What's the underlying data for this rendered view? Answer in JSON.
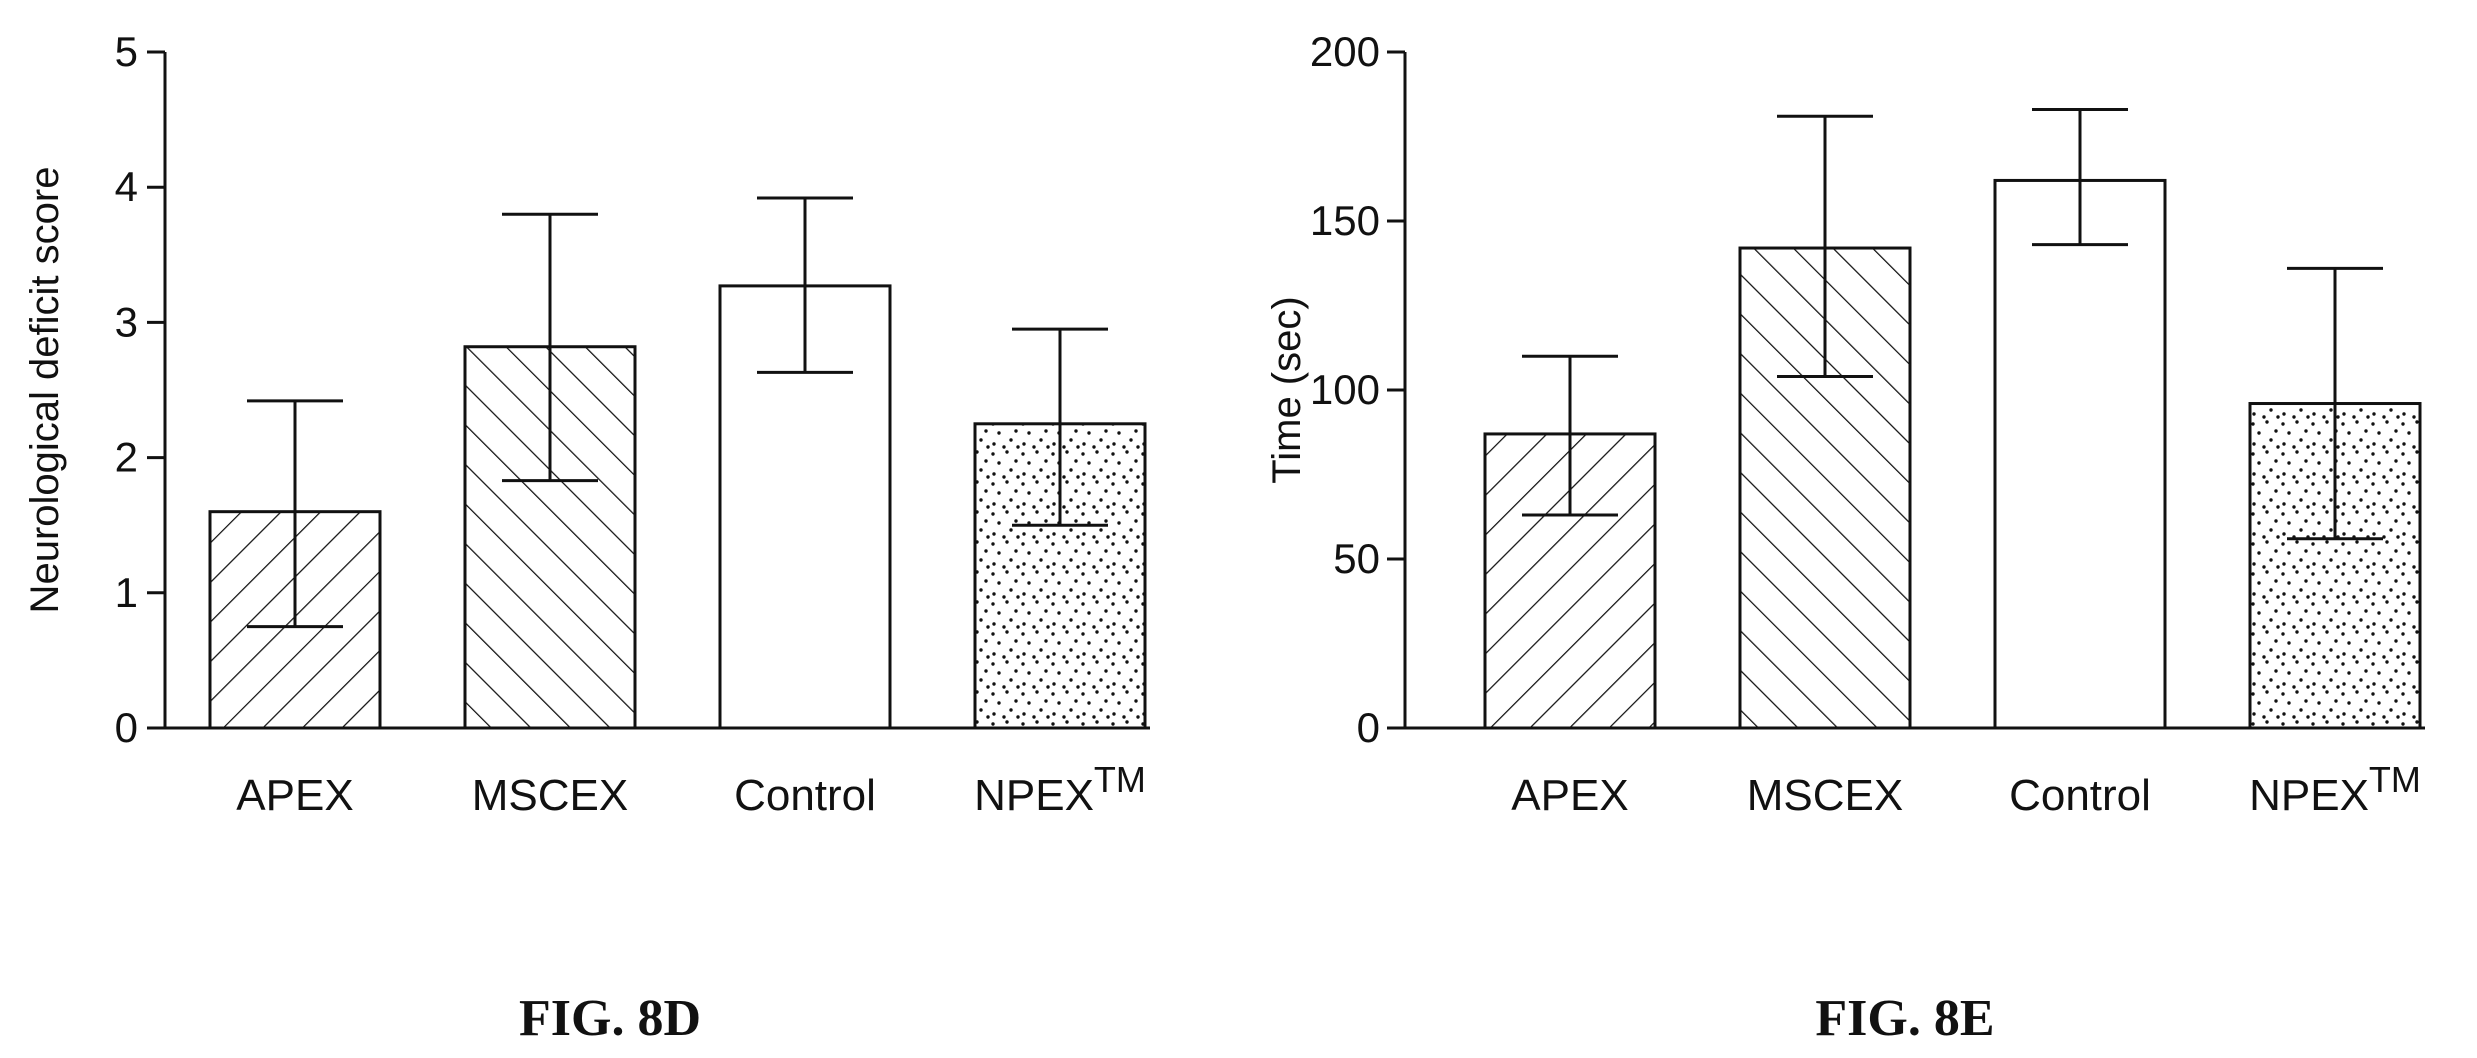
{
  "chart_data": [
    {
      "type": "bar",
      "title": "",
      "caption": "FIG. 8D",
      "ylabel": "Neurological deficit score",
      "xlabel": "",
      "ylim": [
        0,
        5
      ],
      "yticks": [
        0,
        1,
        2,
        3,
        4,
        5
      ],
      "categories": [
        "APEX",
        "MSCEX",
        "Control",
        "NPEX"
      ],
      "category_superscripts": [
        "",
        "",
        "",
        "TM"
      ],
      "patterns": [
        "diagonal-up",
        "diagonal-down",
        "none",
        "dots"
      ],
      "values": [
        1.6,
        2.82,
        3.27,
        2.25
      ],
      "error_upper": [
        2.42,
        3.8,
        3.92,
        2.95
      ],
      "error_lower": [
        0.75,
        1.83,
        2.63,
        1.5
      ],
      "grid": false,
      "legend": "none"
    },
    {
      "type": "bar",
      "title": "",
      "caption": "FIG. 8E",
      "ylabel": "Time (sec)",
      "xlabel": "",
      "ylim": [
        0,
        200
      ],
      "yticks": [
        0,
        50,
        100,
        150,
        200
      ],
      "categories": [
        "APEX",
        "MSCEX",
        "Control",
        "NPEX"
      ],
      "category_superscripts": [
        "",
        "",
        "",
        "TM"
      ],
      "patterns": [
        "diagonal-up",
        "diagonal-down",
        "none",
        "dots"
      ],
      "values": [
        87,
        142,
        162,
        96
      ],
      "error_upper": [
        110,
        181,
        183,
        136
      ],
      "error_lower": [
        63,
        104,
        143,
        56
      ],
      "grid": false,
      "legend": "none"
    }
  ]
}
